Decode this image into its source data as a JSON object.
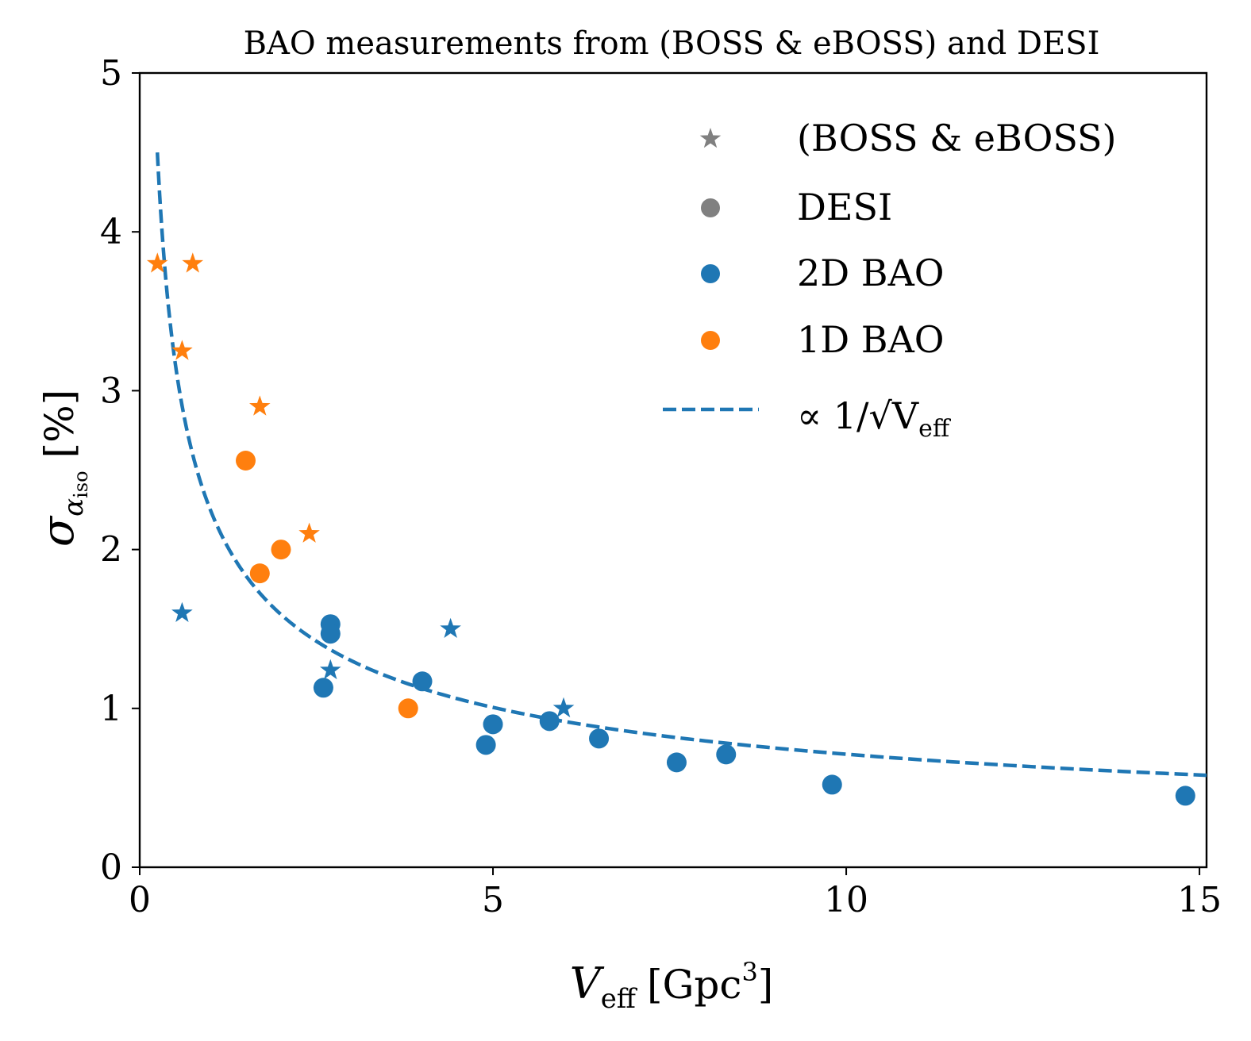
{
  "chart_data": {
    "type": "scatter",
    "title": "BAO measurements from (BOSS & eBOSS) and DESI",
    "xlabel": {
      "main": "V",
      "sub": "eff",
      "unit": "[Gpc",
      "sup": "3",
      "close": "]"
    },
    "ylabel": {
      "main": "σ",
      "sub1": "α",
      "sub2": "iso",
      "unit": "[%]"
    },
    "xlim": [
      0,
      15.1
    ],
    "ylim": [
      0,
      5
    ],
    "xticks": [
      0,
      5,
      10,
      15
    ],
    "yticks": [
      0,
      1,
      2,
      3,
      4,
      5
    ],
    "grid": false,
    "legend_position": "top-right",
    "colors": {
      "2D BAO": "#1f77b4",
      "1D BAO": "#ff7f0e",
      "neutral": "#808080"
    },
    "legend": [
      {
        "label": "(BOSS & eBOSS)",
        "marker": "star",
        "color": "#808080"
      },
      {
        "label": "DESI",
        "marker": "circle",
        "color": "#808080"
      },
      {
        "label": "2D BAO",
        "marker": "circle",
        "color": "#1f77b4"
      },
      {
        "label": "1D BAO",
        "marker": "circle",
        "color": "#ff7f0e"
      },
      {
        "label": "∝ 1/√V",
        "label_sub": "eff",
        "marker": "dashed-line",
        "color": "#1f77b4"
      }
    ],
    "series": [
      {
        "name": "BOSS & eBOSS 1D BAO",
        "marker": "star",
        "color": "#ff7f0e",
        "x": [
          0.25,
          0.75,
          0.6,
          1.7,
          2.4
        ],
        "y": [
          3.8,
          3.8,
          3.25,
          2.9,
          2.1
        ]
      },
      {
        "name": "BOSS & eBOSS 2D BAO",
        "marker": "star",
        "color": "#1f77b4",
        "x": [
          0.6,
          2.7,
          4.4,
          6.0
        ],
        "y": [
          1.6,
          1.24,
          1.5,
          1.0
        ]
      },
      {
        "name": "DESI 1D BAO",
        "marker": "circle",
        "color": "#ff7f0e",
        "x": [
          1.5,
          2.0,
          1.7,
          3.8
        ],
        "y": [
          2.56,
          2.0,
          1.85,
          1.0
        ]
      },
      {
        "name": "DESI 2D BAO",
        "marker": "circle",
        "color": "#1f77b4",
        "x": [
          2.7,
          2.7,
          2.6,
          4.0,
          4.9,
          5.0,
          5.8,
          6.5,
          7.6,
          8.3,
          9.8,
          14.8
        ],
        "y": [
          1.53,
          1.47,
          1.13,
          1.17,
          0.77,
          0.9,
          0.92,
          0.81,
          0.66,
          0.71,
          0.52,
          0.45
        ]
      }
    ],
    "fit_curve": {
      "name": "∝ 1/√Veff",
      "coefficient": 2.25,
      "x_range": [
        0.25,
        15.1
      ]
    }
  }
}
